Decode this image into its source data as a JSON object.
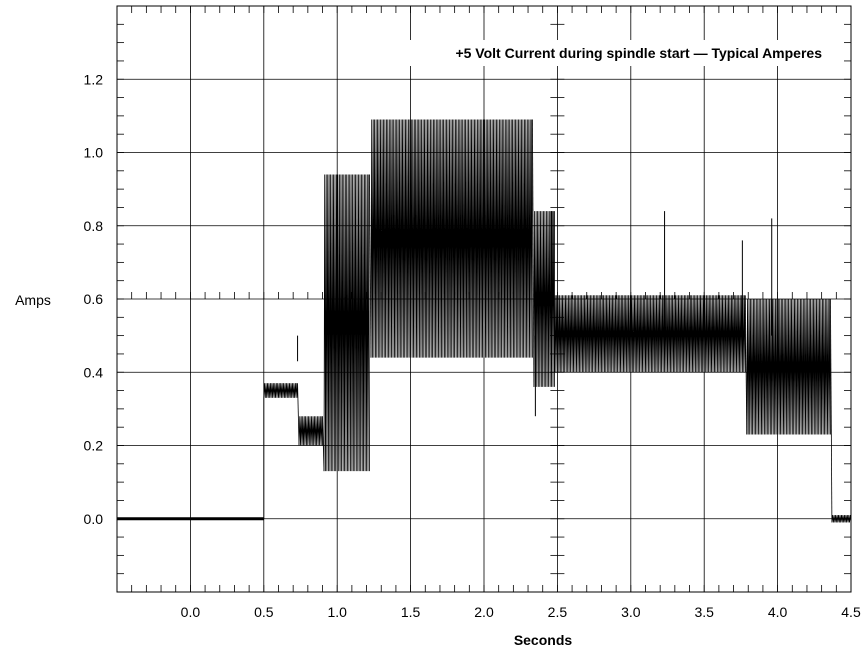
{
  "chart_data": {
    "type": "line",
    "title": "+5 Volt Current during spindle start — Typical Amperes",
    "xlabel": "Seconds",
    "ylabel": "Amps",
    "xlim": [
      -0.5,
      4.5
    ],
    "ylim": [
      -0.2,
      1.4
    ],
    "x_ticks": [
      0.0,
      0.5,
      1.0,
      1.5,
      2.0,
      2.5,
      3.0,
      3.5,
      4.0,
      4.5
    ],
    "x_tick_labels": [
      "0.0",
      "0.5",
      "1.0",
      "1.5",
      "2.0",
      "2.5",
      "3.0",
      "3.5",
      "4.0",
      "4.5"
    ],
    "y_ticks": [
      0.0,
      0.2,
      0.4,
      0.6,
      0.8,
      1.0,
      1.2
    ],
    "y_tick_labels": [
      "0.0",
      "0.2",
      "0.4",
      "0.6",
      "0.8",
      "1.0",
      "1.2"
    ],
    "grid": true,
    "color": "#000000",
    "segments": [
      {
        "x_start": -0.5,
        "x_end": 0.5,
        "low": 0.0,
        "high": 0.0
      },
      {
        "x_start": 0.5,
        "x_end": 0.73,
        "low": 0.33,
        "high": 0.37
      },
      {
        "x_start": 0.74,
        "x_end": 0.9,
        "low": 0.2,
        "high": 0.28
      },
      {
        "x_start": 0.91,
        "x_end": 1.22,
        "low": 0.13,
        "high": 0.94
      },
      {
        "x_start": 1.23,
        "x_end": 2.33,
        "low": 0.44,
        "high": 1.09
      },
      {
        "x_start": 2.34,
        "x_end": 2.48,
        "low": 0.36,
        "high": 0.84
      },
      {
        "x_start": 2.48,
        "x_end": 3.78,
        "low": 0.4,
        "high": 0.61
      },
      {
        "x_start": 3.79,
        "x_end": 4.36,
        "low": 0.23,
        "high": 0.6
      },
      {
        "x_start": 4.37,
        "x_end": 4.5,
        "low": -0.01,
        "high": 0.01
      }
    ],
    "spikes": [
      {
        "x": 0.73,
        "y": 0.43
      },
      {
        "x": 2.35,
        "y": 0.28
      },
      {
        "x": 2.46,
        "y": 0.84
      },
      {
        "x": 3.23,
        "y": 0.84
      },
      {
        "x": 3.76,
        "y": 0.76
      },
      {
        "x": 3.96,
        "y": 0.82
      }
    ]
  }
}
